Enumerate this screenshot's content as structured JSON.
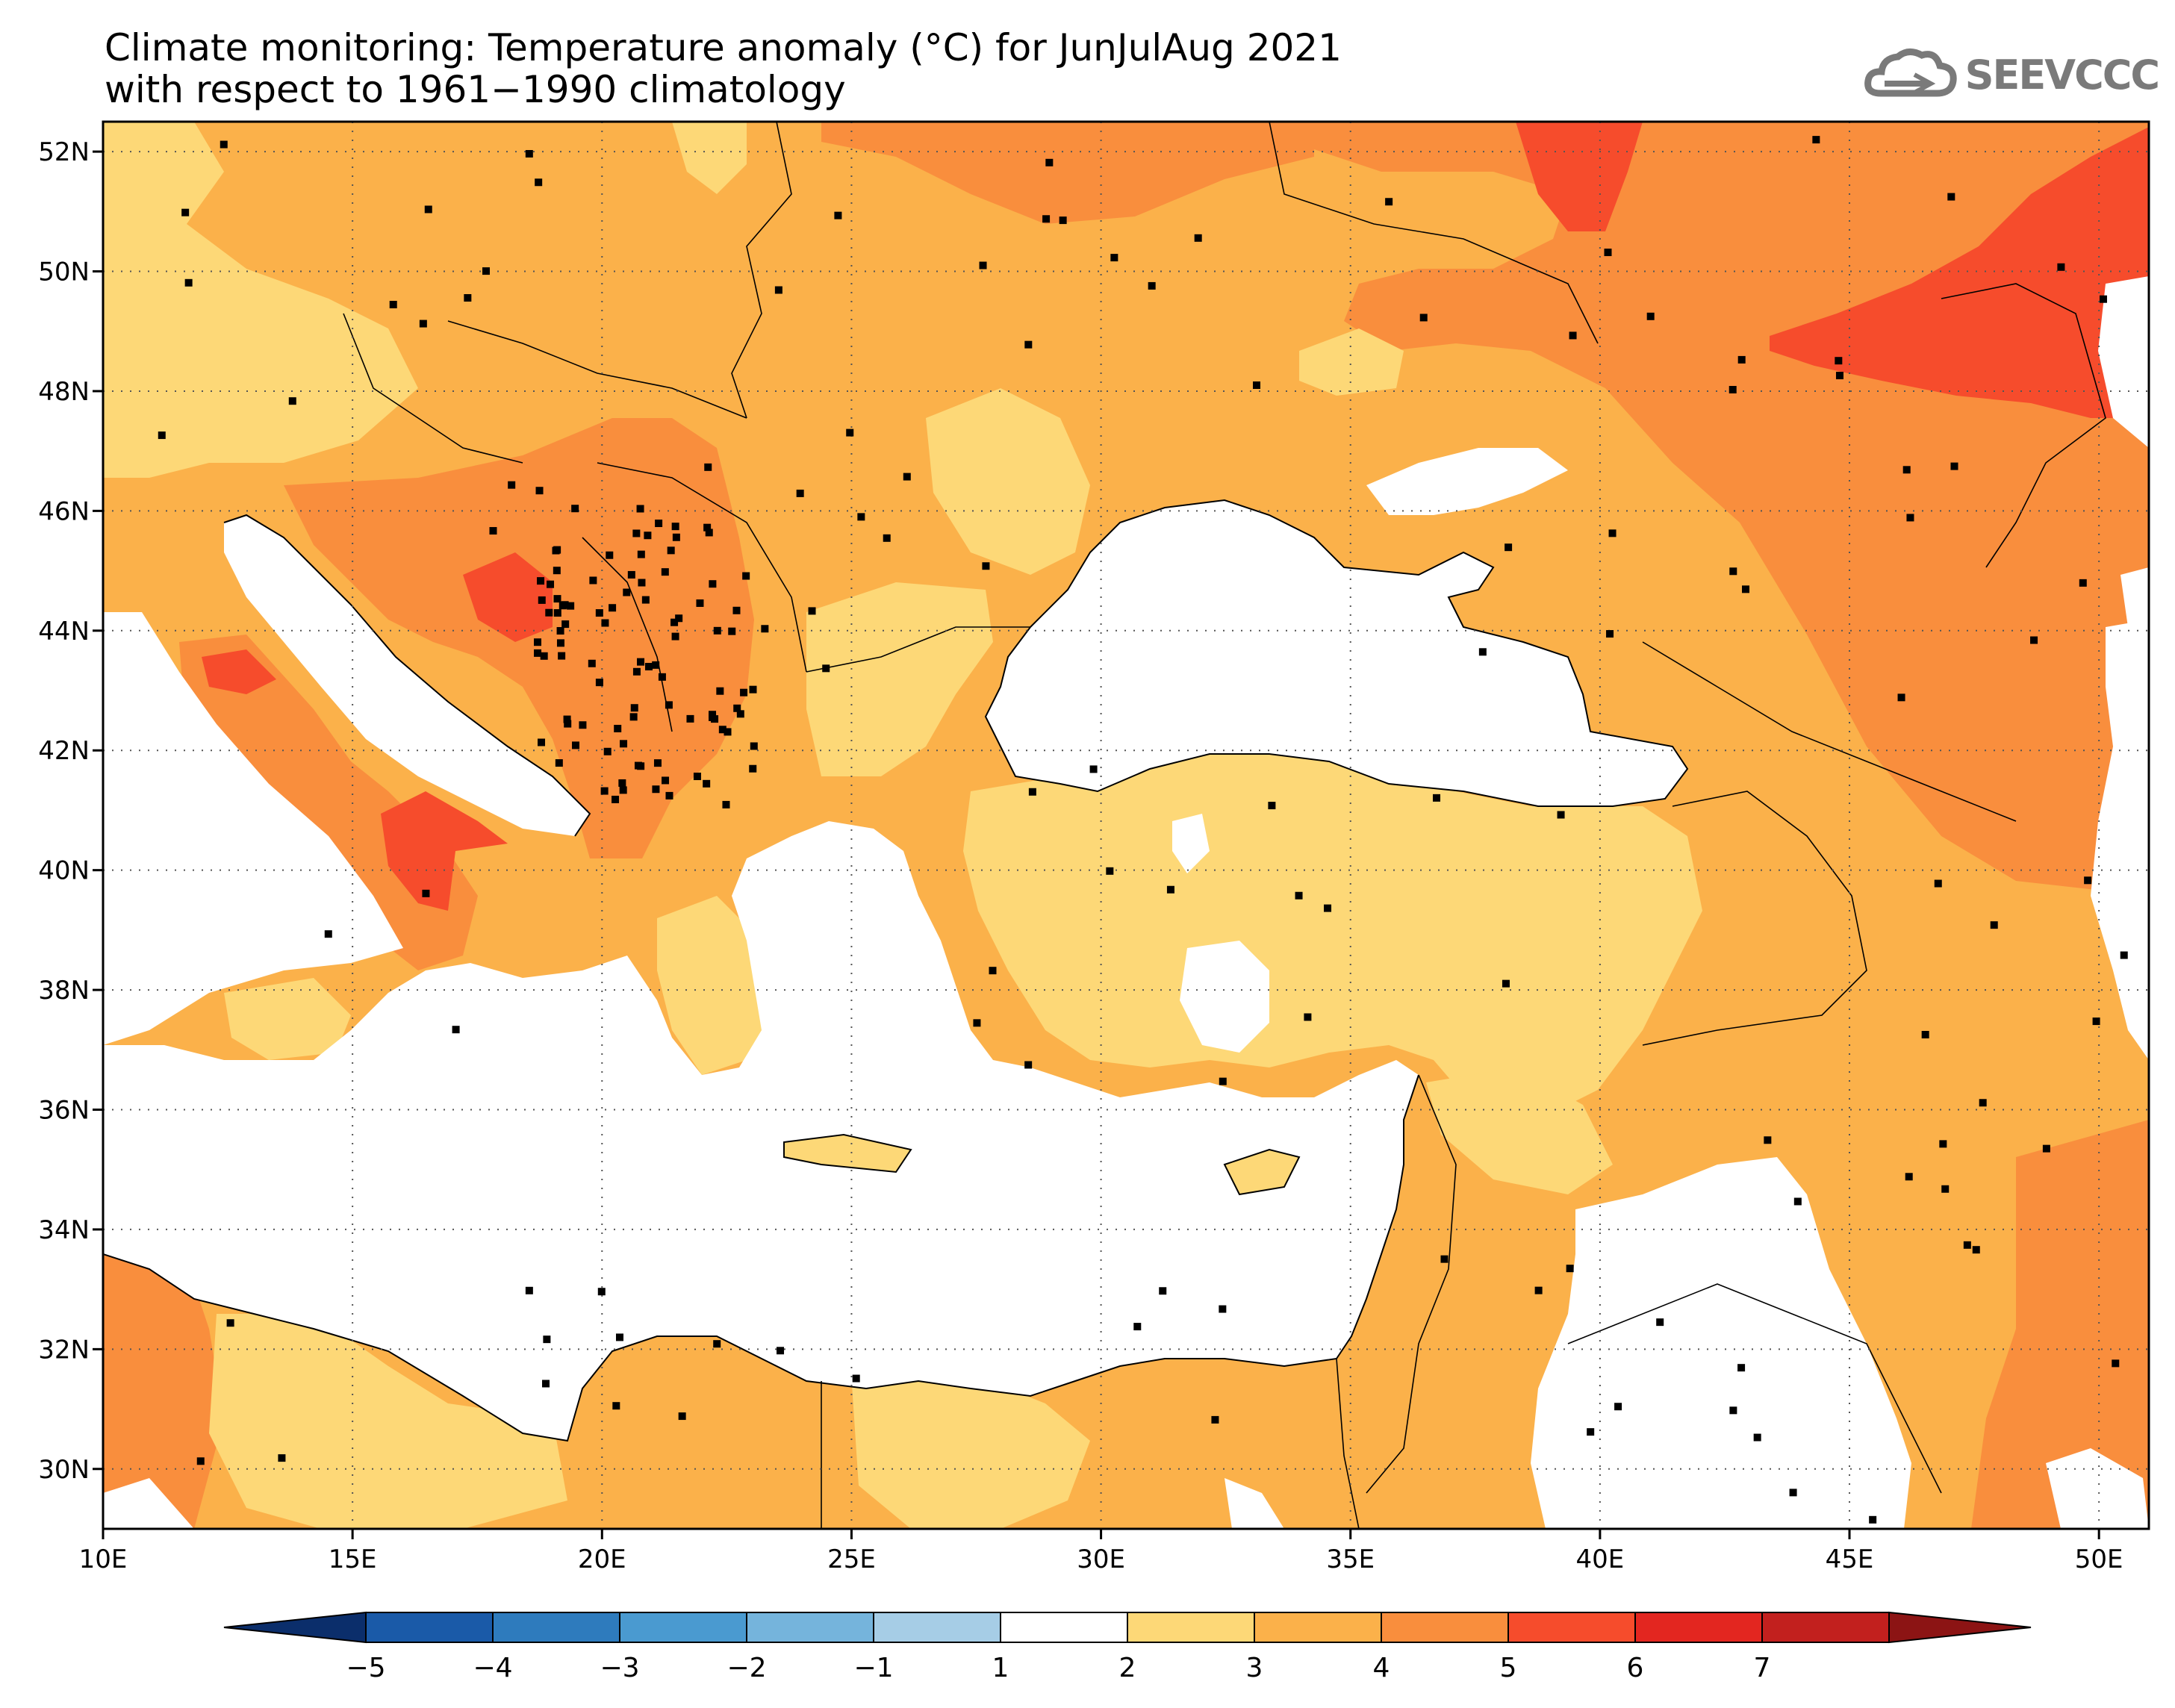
{
  "title": {
    "line1": "Climate monitoring: Temperature anomaly (°C) for JunJulAug 2021",
    "line2": "with respect to 1961−1990 climatology"
  },
  "logo": {
    "text": "SEEVCCC",
    "icon": "cloud-icon"
  },
  "map": {
    "lon_range": [
      10,
      51
    ],
    "lat_range": [
      29,
      52.5
    ],
    "lon_ticks": [
      {
        "value": 10,
        "label": "10E"
      },
      {
        "value": 15,
        "label": "15E"
      },
      {
        "value": 20,
        "label": "20E"
      },
      {
        "value": 25,
        "label": "25E"
      },
      {
        "value": 30,
        "label": "30E"
      },
      {
        "value": 35,
        "label": "35E"
      },
      {
        "value": 40,
        "label": "40E"
      },
      {
        "value": 45,
        "label": "45E"
      },
      {
        "value": 50,
        "label": "50E"
      }
    ],
    "lat_ticks": [
      {
        "value": 52,
        "label": "52N"
      },
      {
        "value": 50,
        "label": "50N"
      },
      {
        "value": 48,
        "label": "48N"
      },
      {
        "value": 46,
        "label": "46N"
      },
      {
        "value": 44,
        "label": "44N"
      },
      {
        "value": 42,
        "label": "42N"
      },
      {
        "value": 40,
        "label": "40N"
      },
      {
        "value": 38,
        "label": "38N"
      },
      {
        "value": 36,
        "label": "36N"
      },
      {
        "value": 34,
        "label": "34N"
      },
      {
        "value": 32,
        "label": "32N"
      },
      {
        "value": 30,
        "label": "30N"
      }
    ]
  },
  "colorbar": {
    "labels": [
      "−5",
      "−4",
      "−3",
      "−2",
      "−1",
      "1",
      "2",
      "3",
      "4",
      "5",
      "6",
      "7"
    ],
    "under_color": "#0b2e6b",
    "over_color": "#8c1414",
    "colors": [
      "#1a5aa8",
      "#2e7bbd",
      "#4a9ad0",
      "#75b4dc",
      "#a6cde6",
      "#ffffff",
      "#fdd877",
      "#fbb14a",
      "#f98e3d",
      "#f64c2c",
      "#e32620",
      "#c2201e"
    ]
  },
  "colors": {
    "c1_2": "#fdd877",
    "c2_3": "#fbb14a",
    "c3_4": "#f98e3d",
    "c4_5": "#f64c2c",
    "sea": "#ffffff"
  }
}
